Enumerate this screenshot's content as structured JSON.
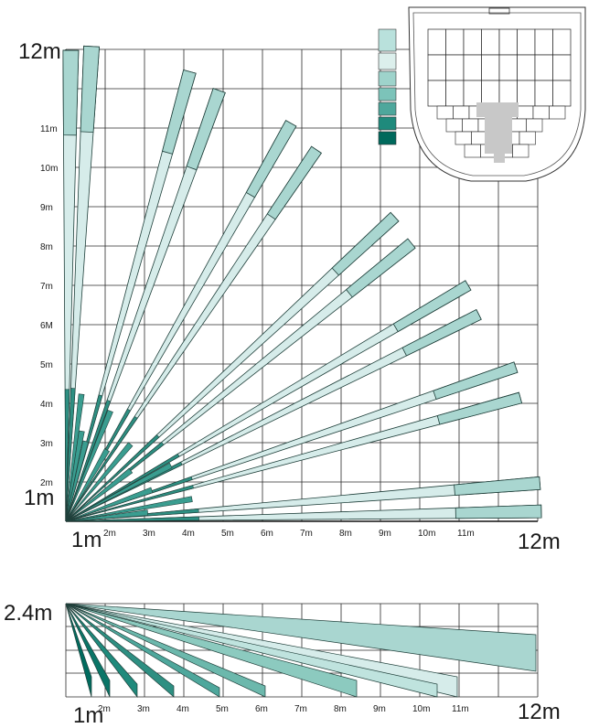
{
  "top_plot": {
    "corner_top_label": "12m",
    "corner_origin_label": "1m",
    "x_origin_label": "1m",
    "x_end_label": "12m",
    "y_tick_labels": [
      "2m",
      "3m",
      "4m",
      "5m",
      "6M",
      "7m",
      "8m",
      "9m",
      "10m",
      "11m"
    ],
    "x_tick_labels": [
      "2m",
      "3m",
      "4m",
      "5m",
      "6m",
      "7m",
      "8m",
      "9m",
      "10m",
      "11m"
    ]
  },
  "bottom_plot": {
    "y_top_label": "2.4m",
    "x_origin_label": "1m",
    "x_end_label": "12m",
    "x_tick_labels": [
      "2m",
      "3m",
      "4m",
      "5m",
      "6m",
      "7m",
      "8m",
      "9m",
      "10m",
      "11m"
    ]
  },
  "colors": {
    "grid": "#2a2a2a",
    "beam_light": "#d6ecea",
    "beam_mid": "#a9d6d0",
    "beam_dark": "#006b5e",
    "beam_edge": "#1f3f3a"
  },
  "legend_swatches": [
    "#b9e1dc",
    "#dcefec",
    "#9ed3cb",
    "#7cc3b9",
    "#4ea79c",
    "#1f8a7c",
    "#00695c"
  ]
}
